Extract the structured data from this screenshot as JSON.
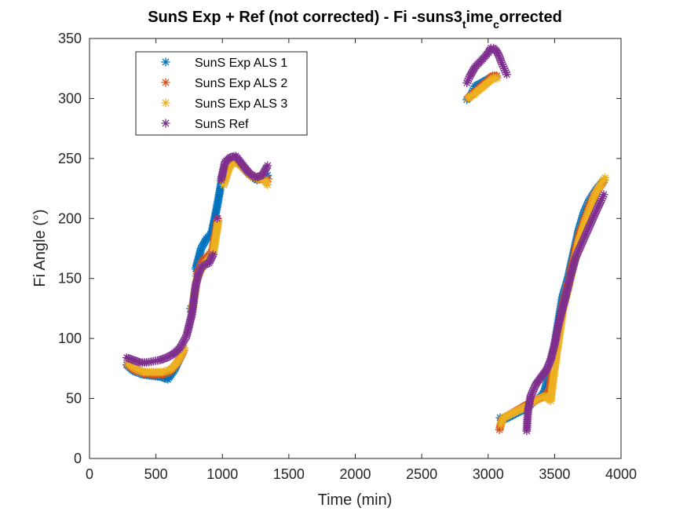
{
  "chart_data": {
    "type": "scatter",
    "title": {
      "pre": "SunS Exp + Ref  (not corrected) - Fi -suns3",
      "sub1": "t",
      "mid": "ime",
      "sub2": "c",
      "post": "orrected"
    },
    "xlabel": "Time (min)",
    "ylabel": "Fi Angle (°)",
    "xlim": [
      0,
      4000
    ],
    "ylim": [
      0,
      350
    ],
    "xticks": [
      0,
      500,
      1000,
      1500,
      2000,
      2500,
      3000,
      3500,
      4000
    ],
    "yticks": [
      0,
      50,
      100,
      150,
      200,
      250,
      300,
      350
    ],
    "grid": false,
    "legend_position": "top-left",
    "marker": "asterisk",
    "series": [
      {
        "name": "SunS Exp ALS 1",
        "color": "#0072BD",
        "points": [
          [
            280,
            78
          ],
          [
            330,
            73
          ],
          [
            400,
            70
          ],
          [
            470,
            69
          ],
          [
            540,
            68
          ],
          [
            590,
            66
          ],
          [
            640,
            74
          ],
          [
            700,
            88
          ],
          [
            760,
            125
          ],
          [
            800,
            158
          ],
          [
            840,
            175
          ],
          [
            880,
            183
          ],
          [
            920,
            188
          ],
          [
            960,
            210
          ],
          [
            1000,
            235
          ],
          [
            1040,
            245
          ],
          [
            1080,
            250
          ],
          [
            1140,
            245
          ],
          [
            1200,
            237
          ],
          [
            1260,
            232
          ],
          [
            1300,
            234
          ],
          [
            1340,
            236
          ],
          [
            2840,
            299
          ],
          [
            2860,
            301
          ],
          [
            2880,
            305
          ],
          [
            2900,
            310
          ],
          [
            3030,
            318
          ],
          [
            3060,
            318
          ],
          [
            3090,
            34
          ],
          [
            3110,
            32
          ],
          [
            3290,
            42
          ],
          [
            3340,
            47
          ],
          [
            3380,
            50
          ],
          [
            3420,
            55
          ],
          [
            3460,
            70
          ],
          [
            3500,
            95
          ],
          [
            3530,
            115
          ],
          [
            3560,
            135
          ],
          [
            3600,
            150
          ],
          [
            3640,
            170
          ],
          [
            3680,
            190
          ],
          [
            3720,
            205
          ],
          [
            3760,
            215
          ],
          [
            3800,
            222
          ],
          [
            3840,
            228
          ],
          [
            3870,
            232
          ]
        ]
      },
      {
        "name": "SunS Exp ALS 2",
        "color": "#D95319",
        "points": [
          [
            285,
            78
          ],
          [
            335,
            74
          ],
          [
            405,
            71
          ],
          [
            475,
            70
          ],
          [
            545,
            70
          ],
          [
            600,
            72
          ],
          [
            650,
            78
          ],
          [
            710,
            90
          ],
          [
            765,
            122
          ],
          [
            805,
            152
          ],
          [
            845,
            164
          ],
          [
            885,
            168
          ],
          [
            925,
            173
          ],
          [
            965,
            200
          ],
          [
            1005,
            232
          ],
          [
            1045,
            244
          ],
          [
            1085,
            250
          ],
          [
            1145,
            244
          ],
          [
            1205,
            237
          ],
          [
            1265,
            233
          ],
          [
            1310,
            233
          ],
          [
            1345,
            233
          ],
          [
            2845,
            300
          ],
          [
            2865,
            302
          ],
          [
            2885,
            304
          ],
          [
            2905,
            306
          ],
          [
            3035,
            319
          ],
          [
            3065,
            319
          ],
          [
            3085,
            24
          ],
          [
            3105,
            33
          ],
          [
            3295,
            45
          ],
          [
            3345,
            48
          ],
          [
            3385,
            50
          ],
          [
            3425,
            52
          ],
          [
            3465,
            58
          ],
          [
            3490,
            85
          ],
          [
            3525,
            100
          ],
          [
            3560,
            128
          ],
          [
            3600,
            145
          ],
          [
            3640,
            165
          ],
          [
            3680,
            185
          ],
          [
            3720,
            198
          ],
          [
            3760,
            210
          ],
          [
            3800,
            220
          ],
          [
            3840,
            226
          ],
          [
            3875,
            232
          ]
        ]
      },
      {
        "name": "SunS Exp ALS 3",
        "color": "#EDB120",
        "points": [
          [
            290,
            79
          ],
          [
            340,
            75
          ],
          [
            410,
            72
          ],
          [
            480,
            72
          ],
          [
            550,
            72
          ],
          [
            610,
            74
          ],
          [
            660,
            80
          ],
          [
            715,
            92
          ],
          [
            770,
            122
          ],
          [
            810,
            150
          ],
          [
            850,
            160
          ],
          [
            890,
            165
          ],
          [
            930,
            170
          ],
          [
            970,
            198
          ],
          [
            1010,
            228
          ],
          [
            1050,
            242
          ],
          [
            1090,
            248
          ],
          [
            1150,
            243
          ],
          [
            1210,
            236
          ],
          [
            1270,
            233
          ],
          [
            1320,
            232
          ],
          [
            1340,
            228
          ],
          [
            2850,
            300
          ],
          [
            2870,
            302
          ],
          [
            2890,
            303
          ],
          [
            2910,
            305
          ],
          [
            3040,
            317
          ],
          [
            3070,
            317
          ],
          [
            3095,
            28
          ],
          [
            3115,
            34
          ],
          [
            3300,
            44
          ],
          [
            3350,
            48
          ],
          [
            3390,
            50
          ],
          [
            3430,
            52
          ],
          [
            3470,
            48
          ],
          [
            3500,
            75
          ],
          [
            3530,
            98
          ],
          [
            3565,
            125
          ],
          [
            3605,
            143
          ],
          [
            3645,
            162
          ],
          [
            3685,
            182
          ],
          [
            3725,
            196
          ],
          [
            3765,
            208
          ],
          [
            3805,
            220
          ],
          [
            3845,
            228
          ],
          [
            3880,
            234
          ]
        ]
      },
      {
        "name": "SunS Ref",
        "color": "#7E2F8E",
        "points": [
          [
            280,
            84
          ],
          [
            330,
            82
          ],
          [
            380,
            80
          ],
          [
            430,
            80
          ],
          [
            480,
            81
          ],
          [
            530,
            82
          ],
          [
            580,
            84
          ],
          [
            630,
            87
          ],
          [
            680,
            92
          ],
          [
            730,
            102
          ],
          [
            770,
            120
          ],
          [
            800,
            145
          ],
          [
            830,
            157
          ],
          [
            860,
            161
          ],
          [
            900,
            163
          ],
          [
            930,
            170
          ],
          [
            960,
            200
          ],
          [
            990,
            232
          ],
          [
            1020,
            247
          ],
          [
            1060,
            251
          ],
          [
            1100,
            252
          ],
          [
            1150,
            245
          ],
          [
            1200,
            238
          ],
          [
            1250,
            234
          ],
          [
            1300,
            236
          ],
          [
            1340,
            244
          ],
          [
            2840,
            313
          ],
          [
            2860,
            318
          ],
          [
            2880,
            322
          ],
          [
            2900,
            326
          ],
          [
            2960,
            333
          ],
          [
            3000,
            338
          ],
          [
            3020,
            342
          ],
          [
            3040,
            342
          ],
          [
            3060,
            340
          ],
          [
            3080,
            336
          ],
          [
            3100,
            330
          ],
          [
            3120,
            325
          ],
          [
            3140,
            320
          ],
          [
            3290,
            23
          ],
          [
            3300,
            40
          ],
          [
            3320,
            52
          ],
          [
            3360,
            62
          ],
          [
            3400,
            68
          ],
          [
            3440,
            74
          ],
          [
            3470,
            82
          ],
          [
            3500,
            95
          ],
          [
            3530,
            112
          ],
          [
            3560,
            125
          ],
          [
            3590,
            138
          ],
          [
            3620,
            152
          ],
          [
            3660,
            168
          ],
          [
            3700,
            178
          ],
          [
            3740,
            188
          ],
          [
            3780,
            198
          ],
          [
            3820,
            208
          ],
          [
            3850,
            215
          ],
          [
            3870,
            220
          ]
        ]
      }
    ]
  }
}
